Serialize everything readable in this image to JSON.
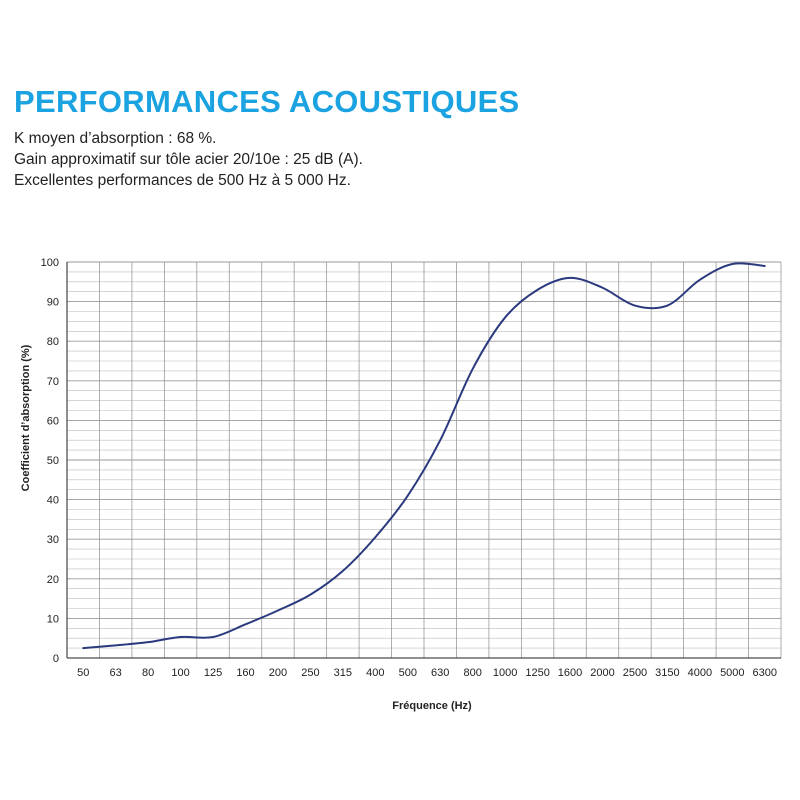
{
  "header": {
    "title": "PERFORMANCES ACOUSTIQUES",
    "lines": [
      "K moyen d’absorption : 68 %.",
      "Gain approximatif sur tôle acier 20/10e : 25 dB (A).",
      "Excellentes performances de 500 Hz à 5 000 Hz."
    ]
  },
  "chart_data": {
    "type": "line",
    "title": "",
    "xlabel": "Fréquence (Hz)",
    "ylabel": "Coefficient d’absorption (%)",
    "categories": [
      "50",
      "63",
      "80",
      "100",
      "125",
      "160",
      "200",
      "250",
      "315",
      "400",
      "500",
      "630",
      "800",
      "1000",
      "1250",
      "1600",
      "2000",
      "2500",
      "3150",
      "4000",
      "5000",
      "6300"
    ],
    "ylim": [
      0,
      100
    ],
    "yticks": [
      0,
      10,
      20,
      30,
      40,
      50,
      60,
      70,
      80,
      90,
      100
    ],
    "grid": true,
    "legend": "none",
    "series": [
      {
        "values": [
          2.5,
          3.2,
          4,
          5.3,
          5.3,
          8.5,
          12,
          16,
          22,
          30.5,
          41,
          55,
          73,
          86,
          93,
          96,
          93.5,
          89,
          89,
          95.5,
          99.5,
          99
        ]
      }
    ],
    "colors": {
      "line": "#2b3a7e",
      "grid": "#bcbcbc",
      "axis": "#222222"
    }
  }
}
